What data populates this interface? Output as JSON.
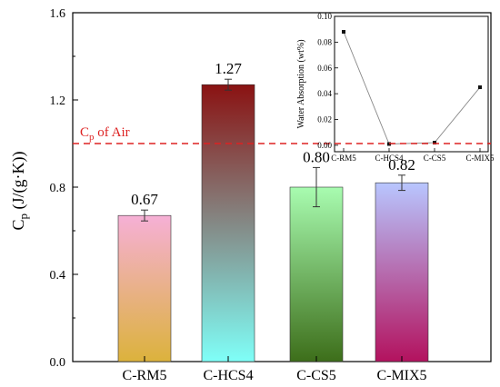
{
  "chart_data": [
    {
      "type": "bar",
      "categories": [
        "C-RM5",
        "C-HCS4",
        "C-CS5",
        "C-MIX5"
      ],
      "values": [
        0.67,
        1.27,
        0.8,
        0.82
      ],
      "value_labels": [
        "0.67",
        "1.27",
        "0.80",
        "0.82"
      ],
      "errors": [
        0.025,
        0.025,
        0.09,
        0.035
      ],
      "ylim": [
        0.0,
        1.6
      ],
      "yticks": [
        0.0,
        0.4,
        0.8,
        1.2,
        1.6
      ],
      "ytick_labels": [
        "0.0",
        "0.4",
        "0.8",
        "1.2",
        "1.6"
      ],
      "ylabel_main": "C",
      "ylabel_sub": "p",
      "ylabel_rest": " (J/(g·K))",
      "bar_gradients": [
        [
          "#f6b0d6",
          "#dcb23c"
        ],
        [
          "#8a1212",
          "#7ffff8"
        ],
        [
          "#a8fcb0",
          "#3d6e1a"
        ],
        [
          "#b8c6ff",
          "#b3125e"
        ]
      ],
      "reference_line": {
        "value": 1.0,
        "label_main": "C",
        "label_sub": "p",
        "label_rest": " of Air",
        "color": "#dd2222"
      },
      "grid": false
    },
    {
      "type": "line",
      "title": "Water Absorption (wt%)",
      "categories": [
        "C-RM5",
        "C-HCS4",
        "C-CS5",
        "C-MIX5"
      ],
      "values": [
        0.088,
        0.001,
        0.002,
        0.045
      ],
      "ylim": [
        -0.005,
        0.1
      ],
      "yticks": [
        0.0,
        0.02,
        0.04,
        0.06,
        0.08,
        0.1
      ],
      "ytick_labels": [
        "0.00",
        "0.02",
        "0.04",
        "0.06",
        "0.08",
        "0.10"
      ],
      "grid": false
    }
  ]
}
